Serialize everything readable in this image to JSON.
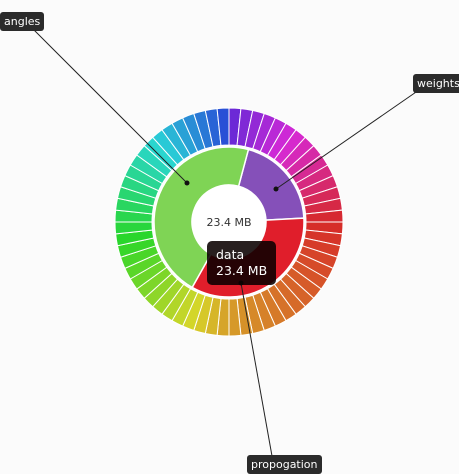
{
  "chart_data": {
    "type": "sunburst",
    "center_label": "23.4 MB",
    "inner": [
      {
        "name": "angles",
        "fraction": 0.46,
        "color": "#7fd455"
      },
      {
        "name": "weights",
        "fraction": 0.2,
        "color": "#8550b9"
      },
      {
        "name": "data",
        "fraction": 0.34,
        "color": "#e01e2b"
      }
    ],
    "outer_segment_count": 60,
    "callouts": [
      {
        "label": "angles"
      },
      {
        "label": "weights"
      },
      {
        "label": "propogation"
      }
    ],
    "tooltip": {
      "name": "data",
      "value": "23.4 MB"
    }
  }
}
